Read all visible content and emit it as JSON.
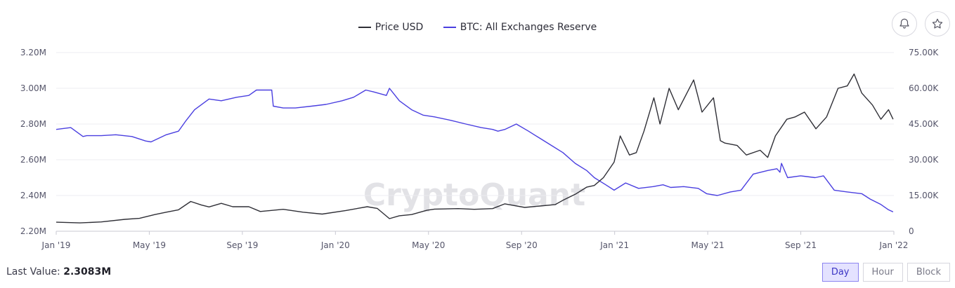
{
  "legend": {
    "price": "Price USD",
    "reserve": "BTC: All Exchanges Reserve"
  },
  "icons": {
    "alert": "bell-icon",
    "favorite": "star-icon"
  },
  "watermark": "CryptoQuant",
  "footer": {
    "last_value_label": "Last Value:",
    "last_value": "2.3083M"
  },
  "resolution": {
    "options": [
      "Day",
      "Hour",
      "Block"
    ],
    "selected": "Day"
  },
  "colors": {
    "price": "#2f2f36",
    "reserve": "#4a3fe0",
    "active_bg": "#e4e2ff"
  },
  "chart_data": {
    "type": "line",
    "x_ticks": [
      "Jan '19",
      "May '19",
      "Sep '19",
      "Jan '20",
      "May '20",
      "Sep '20",
      "Jan '21",
      "May '21",
      "Sep '21",
      "Jan '22"
    ],
    "left_axis": {
      "ticks": [
        "3.20M",
        "3.00M",
        "2.80M",
        "2.60M",
        "2.40M",
        "2.20M"
      ],
      "ylim": [
        2200000,
        3200000
      ]
    },
    "right_axis": {
      "ticks": [
        "75.00K",
        "60.00K",
        "45.00K",
        "30.00K",
        "15.00K",
        "0"
      ],
      "ylim": [
        0,
        75000
      ]
    },
    "grid": true,
    "series": [
      {
        "name": "BTC: All Exchanges Reserve",
        "axis": "left",
        "x": [
          "2019-01-01",
          "2019-01-20",
          "2019-02-05",
          "2019-02-10",
          "2019-03-01",
          "2019-03-20",
          "2019-04-10",
          "2019-04-28",
          "2019-05-05",
          "2019-05-25",
          "2019-06-10",
          "2019-06-20",
          "2019-07-01",
          "2019-07-20",
          "2019-08-05",
          "2019-08-25",
          "2019-09-10",
          "2019-09-20",
          "2019-10-10",
          "2019-10-12",
          "2019-10-25",
          "2019-11-10",
          "2019-12-01",
          "2019-12-20",
          "2020-01-10",
          "2020-01-25",
          "2020-02-10",
          "2020-02-20",
          "2020-03-08",
          "2020-03-12",
          "2020-03-25",
          "2020-04-10",
          "2020-04-25",
          "2020-05-10",
          "2020-06-01",
          "2020-06-20",
          "2020-07-10",
          "2020-07-25",
          "2020-08-01",
          "2020-08-10",
          "2020-08-25",
          "2020-09-10",
          "2020-09-25",
          "2020-10-10",
          "2020-10-25",
          "2020-11-10",
          "2020-11-25",
          "2020-12-05",
          "2020-12-20",
          "2020-12-31",
          "2021-01-15",
          "2021-02-01",
          "2021-02-20",
          "2021-03-05",
          "2021-03-15",
          "2021-04-01",
          "2021-04-20",
          "2021-05-01",
          "2021-05-15",
          "2021-06-01",
          "2021-06-15",
          "2021-07-01",
          "2021-07-20",
          "2021-08-01",
          "2021-08-05",
          "2021-08-07",
          "2021-08-15",
          "2021-09-01",
          "2021-09-20",
          "2021-10-01",
          "2021-10-15",
          "2021-11-01",
          "2021-11-20",
          "2021-12-01",
          "2021-12-15",
          "2021-12-25",
          "2021-12-31"
        ],
        "values": [
          2770000,
          2780000,
          2730000,
          2735000,
          2735000,
          2740000,
          2730000,
          2705000,
          2700000,
          2740000,
          2760000,
          2820000,
          2880000,
          2940000,
          2930000,
          2950000,
          2960000,
          2990000,
          2990000,
          2900000,
          2890000,
          2890000,
          2900000,
          2910000,
          2930000,
          2950000,
          2990000,
          2980000,
          2960000,
          3000000,
          2930000,
          2880000,
          2850000,
          2840000,
          2820000,
          2800000,
          2780000,
          2770000,
          2760000,
          2770000,
          2800000,
          2760000,
          2720000,
          2680000,
          2640000,
          2580000,
          2540000,
          2500000,
          2460000,
          2430000,
          2470000,
          2440000,
          2450000,
          2460000,
          2445000,
          2450000,
          2440000,
          2410000,
          2400000,
          2420000,
          2430000,
          2520000,
          2540000,
          2550000,
          2530000,
          2580000,
          2500000,
          2510000,
          2500000,
          2510000,
          2430000,
          2420000,
          2410000,
          2380000,
          2350000,
          2320000,
          2308300
        ]
      },
      {
        "name": "Price USD",
        "axis": "right",
        "x": [
          "2019-01-01",
          "2019-02-01",
          "2019-03-01",
          "2019-04-01",
          "2019-04-20",
          "2019-05-10",
          "2019-05-25",
          "2019-06-10",
          "2019-06-26",
          "2019-07-10",
          "2019-07-20",
          "2019-08-05",
          "2019-08-20",
          "2019-09-10",
          "2019-09-25",
          "2019-10-25",
          "2019-11-20",
          "2019-12-15",
          "2020-01-15",
          "2020-02-12",
          "2020-02-25",
          "2020-03-12",
          "2020-03-25",
          "2020-04-10",
          "2020-04-30",
          "2020-05-10",
          "2020-06-10",
          "2020-07-01",
          "2020-07-25",
          "2020-08-10",
          "2020-09-05",
          "2020-09-25",
          "2020-10-15",
          "2020-10-25",
          "2020-11-10",
          "2020-11-25",
          "2020-12-05",
          "2020-12-17",
          "2020-12-31",
          "2021-01-08",
          "2021-01-20",
          "2021-01-29",
          "2021-02-08",
          "2021-02-21",
          "2021-03-01",
          "2021-03-13",
          "2021-03-25",
          "2021-04-14",
          "2021-04-25",
          "2021-05-10",
          "2021-05-19",
          "2021-05-25",
          "2021-06-10",
          "2021-06-22",
          "2021-07-10",
          "2021-07-20",
          "2021-07-30",
          "2021-08-14",
          "2021-08-25",
          "2021-09-06",
          "2021-09-21",
          "2021-10-05",
          "2021-10-20",
          "2021-11-01",
          "2021-11-10",
          "2021-11-20",
          "2021-12-04",
          "2021-12-15",
          "2021-12-25",
          "2021-12-31"
        ],
        "values": [
          3800,
          3500,
          3900,
          5000,
          5400,
          7000,
          8000,
          9000,
          12500,
          11000,
          10200,
          11700,
          10300,
          10300,
          8300,
          9200,
          8000,
          7200,
          8700,
          10300,
          9600,
          5300,
          6500,
          7000,
          8800,
          9300,
          9500,
          9200,
          9500,
          11500,
          10000,
          10600,
          11200,
          13000,
          15500,
          18500,
          19200,
          22500,
          29000,
          40000,
          32000,
          33000,
          42000,
          56000,
          45000,
          60000,
          51000,
          63500,
          50000,
          56000,
          38000,
          37000,
          36000,
          32000,
          34000,
          31000,
          40000,
          47000,
          48000,
          50000,
          43000,
          48000,
          60000,
          61000,
          66000,
          58000,
          53000,
          47000,
          51000,
          47000
        ]
      }
    ]
  }
}
